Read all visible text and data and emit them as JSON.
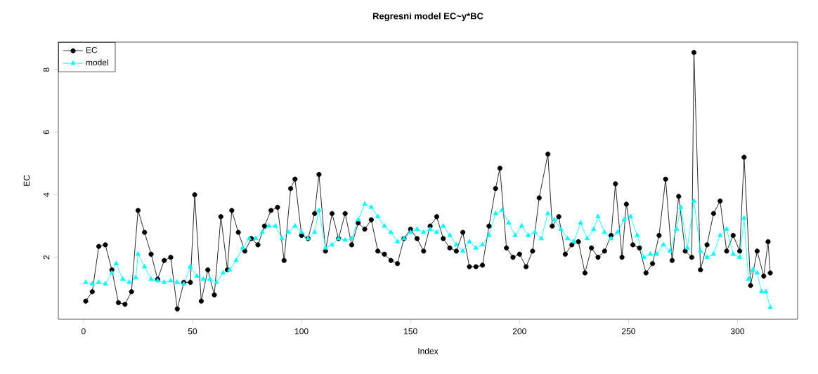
{
  "chart_data": {
    "type": "line",
    "title": "Regresni model EC~y*BC",
    "xlabel": "Index",
    "ylabel": "EC",
    "xlim": [
      -11.56,
      327.56
    ],
    "ylim": [
      0.02,
      8.88
    ],
    "xticks": [
      0,
      50,
      100,
      150,
      200,
      250,
      300
    ],
    "yticks": [
      2,
      4,
      6,
      8
    ],
    "grid": false,
    "legend": "top left",
    "line_style": "solid",
    "series": [
      {
        "name": "EC",
        "color": "#000000",
        "marker": "circle",
        "x": [
          1,
          4,
          7,
          10,
          13,
          16,
          19,
          22,
          25,
          28,
          31,
          34,
          37,
          40,
          43,
          46,
          49,
          51,
          54,
          57,
          60,
          63,
          66,
          68,
          71,
          74,
          77,
          80,
          83,
          86,
          89,
          92,
          95,
          97,
          100,
          103,
          106,
          108,
          111,
          114,
          117,
          120,
          123,
          126,
          129,
          132,
          135,
          138,
          141,
          144,
          147,
          150,
          153,
          156,
          159,
          162,
          165,
          168,
          171,
          174,
          177,
          180,
          183,
          186,
          189,
          191,
          194,
          197,
          200,
          203,
          206,
          209,
          213,
          215,
          218,
          221,
          224,
          227,
          230,
          233,
          236,
          239,
          242,
          244,
          247,
          249,
          252,
          255,
          258,
          261,
          264,
          267,
          270,
          273,
          276,
          279,
          280,
          283,
          286,
          289,
          292,
          295,
          298,
          301,
          303,
          306,
          309,
          312,
          314,
          315
        ],
        "values": [
          0.6,
          0.9,
          2.35,
          2.4,
          1.6,
          0.55,
          0.5,
          0.9,
          3.5,
          2.8,
          2.1,
          1.3,
          1.9,
          2.0,
          0.35,
          1.2,
          1.2,
          4.0,
          0.6,
          1.6,
          0.8,
          3.3,
          1.6,
          3.5,
          2.8,
          2.2,
          2.6,
          2.4,
          3.0,
          3.5,
          3.6,
          1.9,
          4.2,
          4.5,
          2.7,
          2.6,
          3.4,
          4.65,
          2.2,
          3.4,
          2.6,
          3.4,
          2.4,
          3.1,
          2.9,
          3.2,
          2.2,
          2.1,
          1.9,
          1.8,
          2.6,
          2.9,
          2.6,
          2.2,
          3.0,
          3.3,
          2.6,
          2.3,
          2.2,
          2.8,
          1.7,
          1.7,
          1.75,
          3.0,
          4.2,
          4.85,
          2.3,
          2.0,
          2.1,
          1.7,
          2.2,
          3.9,
          5.3,
          3.0,
          3.3,
          2.1,
          2.4,
          2.5,
          1.5,
          2.3,
          2.0,
          2.2,
          2.7,
          4.35,
          2.0,
          3.7,
          2.4,
          2.3,
          1.5,
          1.8,
          2.7,
          4.5,
          1.9,
          3.95,
          2.2,
          2.0,
          8.55,
          1.6,
          2.4,
          3.4,
          3.8,
          2.2,
          2.7,
          2.2,
          5.2,
          1.1,
          2.2,
          1.4,
          2.5,
          1.5
        ]
      },
      {
        "name": "model",
        "color": "#00ffff",
        "marker": "triangle",
        "x": [
          1,
          4,
          7,
          10,
          13,
          15,
          18,
          21,
          24,
          25,
          28,
          31,
          34,
          37,
          40,
          43,
          46,
          49,
          52,
          55,
          58,
          61,
          64,
          67,
          70,
          73,
          76,
          79,
          82,
          85,
          88,
          91,
          94,
          97,
          100,
          103,
          106,
          108,
          111,
          114,
          117,
          120,
          123,
          126,
          129,
          132,
          135,
          138,
          141,
          144,
          147,
          150,
          153,
          156,
          159,
          162,
          165,
          168,
          171,
          174,
          177,
          180,
          183,
          186,
          189,
          192,
          195,
          198,
          201,
          204,
          207,
          210,
          213,
          216,
          219,
          222,
          225,
          228,
          231,
          234,
          236,
          239,
          242,
          245,
          248,
          251,
          254,
          257,
          260,
          263,
          266,
          269,
          272,
          274,
          277,
          280,
          283,
          286,
          289,
          292,
          295,
          298,
          301,
          303,
          305,
          307,
          309,
          311,
          313,
          315
        ],
        "values": [
          1.2,
          1.15,
          1.2,
          1.15,
          1.5,
          1.8,
          1.3,
          1.2,
          1.35,
          2.1,
          1.7,
          1.3,
          1.25,
          1.2,
          1.25,
          1.2,
          1.15,
          1.7,
          1.4,
          1.3,
          1.3,
          1.2,
          1.5,
          1.6,
          1.9,
          2.3,
          2.6,
          2.6,
          2.8,
          3.0,
          3.0,
          2.6,
          2.8,
          3.0,
          2.8,
          2.6,
          2.8,
          3.5,
          2.3,
          2.4,
          2.6,
          2.55,
          2.6,
          3.2,
          3.7,
          3.6,
          3.3,
          3.0,
          2.8,
          2.5,
          2.6,
          2.8,
          2.9,
          2.8,
          2.9,
          2.8,
          3.0,
          2.7,
          2.4,
          2.2,
          2.5,
          2.3,
          2.4,
          2.7,
          3.4,
          3.5,
          3.1,
          2.7,
          3.0,
          2.7,
          2.8,
          2.6,
          3.4,
          3.2,
          2.9,
          2.6,
          2.5,
          3.1,
          2.6,
          2.9,
          3.3,
          2.8,
          2.6,
          2.8,
          3.2,
          3.3,
          2.7,
          2.0,
          2.1,
          2.1,
          2.4,
          2.2,
          2.9,
          3.6,
          2.3,
          3.8,
          2.2,
          2.0,
          2.1,
          2.7,
          2.9,
          2.1,
          2.0,
          3.25,
          1.3,
          1.6,
          1.5,
          0.9,
          0.9,
          0.4
        ]
      }
    ]
  }
}
